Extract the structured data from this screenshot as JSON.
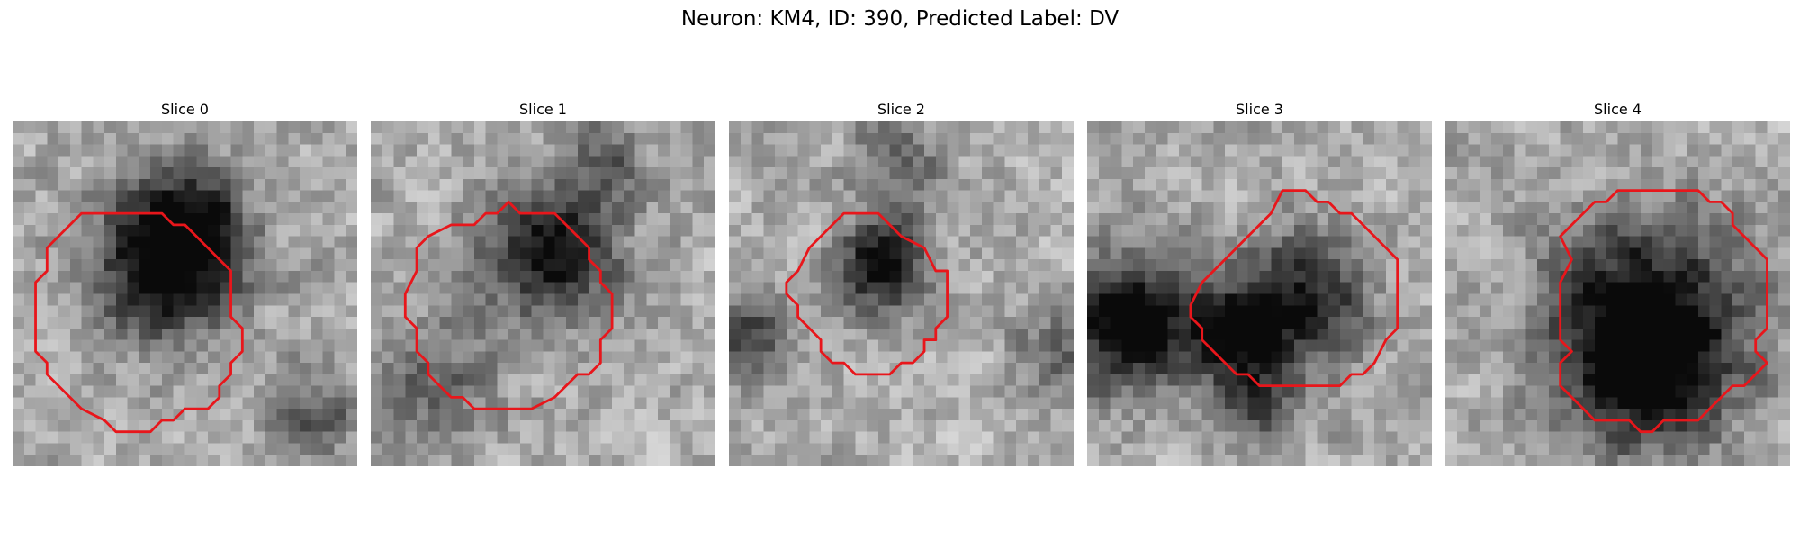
{
  "figure": {
    "title": "Neuron: KM4, ID: 390, Predicted Label: DV",
    "contour_color": "#e8161b",
    "grid_size": 30,
    "panels": [
      {
        "title": "Slice 0",
        "seed": 11,
        "blobs": [
          [
            13,
            12,
            7,
            0.85
          ],
          [
            15,
            8,
            5,
            0.5
          ],
          [
            26,
            25,
            4,
            0.4
          ]
        ],
        "contour": [
          [
            7,
            8
          ],
          [
            13,
            8
          ],
          [
            14,
            9
          ],
          [
            15,
            9
          ],
          [
            18,
            12
          ],
          [
            19,
            13
          ],
          [
            19,
            17
          ],
          [
            20,
            18
          ],
          [
            20,
            20
          ],
          [
            19,
            21
          ],
          [
            19,
            22
          ],
          [
            18,
            23
          ],
          [
            18,
            24
          ],
          [
            17,
            25
          ],
          [
            15,
            25
          ],
          [
            14,
            26
          ],
          [
            13,
            26
          ],
          [
            12,
            27
          ],
          [
            10,
            27
          ],
          [
            9,
            27
          ],
          [
            8,
            26
          ],
          [
            6,
            25
          ],
          [
            5,
            24
          ],
          [
            4,
            23
          ],
          [
            3,
            22
          ],
          [
            3,
            21
          ],
          [
            2,
            20
          ],
          [
            2,
            18
          ],
          [
            2,
            14
          ],
          [
            3,
            13
          ],
          [
            3,
            11
          ],
          [
            4,
            10
          ],
          [
            6,
            8
          ]
        ]
      },
      {
        "title": "Slice 1",
        "seed": 23,
        "blobs": [
          [
            15,
            11,
            6,
            0.8
          ],
          [
            5,
            22,
            6,
            0.35
          ],
          [
            20,
            3,
            4,
            0.35
          ]
        ],
        "contour": [
          [
            5,
            10
          ],
          [
            7,
            9
          ],
          [
            9,
            9
          ],
          [
            10,
            8
          ],
          [
            11,
            8
          ],
          [
            12,
            7
          ],
          [
            13,
            8
          ],
          [
            16,
            8
          ],
          [
            17,
            9
          ],
          [
            18,
            10
          ],
          [
            19,
            11
          ],
          [
            19,
            12
          ],
          [
            20,
            13
          ],
          [
            20,
            14
          ],
          [
            21,
            15
          ],
          [
            21,
            18
          ],
          [
            20,
            19
          ],
          [
            20,
            21
          ],
          [
            19,
            22
          ],
          [
            18,
            22
          ],
          [
            17,
            23
          ],
          [
            16,
            24
          ],
          [
            14,
            25
          ],
          [
            13,
            25
          ],
          [
            9,
            25
          ],
          [
            8,
            24
          ],
          [
            7,
            24
          ],
          [
            5,
            22
          ],
          [
            5,
            21
          ],
          [
            4,
            20
          ],
          [
            4,
            18
          ],
          [
            3,
            17
          ],
          [
            3,
            15
          ],
          [
            4,
            13
          ],
          [
            4,
            11
          ]
        ]
      },
      {
        "title": "Slice 2",
        "seed": 37,
        "blobs": [
          [
            13,
            12,
            4,
            0.9
          ],
          [
            1,
            18,
            4,
            0.55
          ],
          [
            14,
            3,
            4,
            0.4
          ],
          [
            28,
            20,
            4,
            0.35
          ]
        ],
        "contour": [
          [
            7,
            11
          ],
          [
            9,
            9
          ],
          [
            10,
            8
          ],
          [
            13,
            8
          ],
          [
            14,
            9
          ],
          [
            15,
            10
          ],
          [
            17,
            11
          ],
          [
            18,
            13
          ],
          [
            19,
            13
          ],
          [
            19,
            17
          ],
          [
            18,
            18
          ],
          [
            18,
            19
          ],
          [
            17,
            19
          ],
          [
            17,
            20
          ],
          [
            16,
            21
          ],
          [
            15,
            21
          ],
          [
            14,
            22
          ],
          [
            13,
            22
          ],
          [
            11,
            22
          ],
          [
            10,
            21
          ],
          [
            9,
            21
          ],
          [
            8,
            20
          ],
          [
            8,
            19
          ],
          [
            7,
            18
          ],
          [
            6,
            17
          ],
          [
            6,
            16
          ],
          [
            5,
            15
          ],
          [
            5,
            14
          ],
          [
            6,
            13
          ]
        ]
      },
      {
        "title": "Slice 3",
        "seed": 53,
        "blobs": [
          [
            3,
            17,
            6,
            0.95
          ],
          [
            18,
            15,
            6,
            0.75
          ],
          [
            12,
            18,
            4,
            0.7
          ],
          [
            14,
            24,
            4,
            0.5
          ]
        ],
        "contour": [
          [
            10,
            14
          ],
          [
            12,
            12
          ],
          [
            16,
            8
          ],
          [
            17,
            6
          ],
          [
            19,
            6
          ],
          [
            20,
            7
          ],
          [
            21,
            7
          ],
          [
            22,
            8
          ],
          [
            23,
            8
          ],
          [
            24,
            9
          ],
          [
            26,
            11
          ],
          [
            27,
            12
          ],
          [
            27,
            18
          ],
          [
            26,
            19
          ],
          [
            25,
            21
          ],
          [
            24,
            22
          ],
          [
            23,
            22
          ],
          [
            22,
            23
          ],
          [
            15,
            23
          ],
          [
            14,
            22
          ],
          [
            13,
            22
          ],
          [
            11,
            20
          ],
          [
            10,
            19
          ],
          [
            10,
            18
          ],
          [
            9,
            17
          ],
          [
            9,
            16
          ]
        ]
      },
      {
        "title": "Slice 4",
        "seed": 71,
        "blobs": [
          [
            17,
            17,
            9,
            0.95
          ],
          [
            17,
            22,
            6,
            0.45
          ]
        ],
        "contour": [
          [
            10,
            10
          ],
          [
            12,
            8
          ],
          [
            13,
            7
          ],
          [
            14,
            7
          ],
          [
            15,
            6
          ],
          [
            22,
            6
          ],
          [
            23,
            7
          ],
          [
            24,
            7
          ],
          [
            25,
            8
          ],
          [
            25,
            9
          ],
          [
            27,
            11
          ],
          [
            28,
            12
          ],
          [
            28,
            18
          ],
          [
            27,
            19
          ],
          [
            27,
            20
          ],
          [
            28,
            21
          ],
          [
            27,
            22
          ],
          [
            26,
            23
          ],
          [
            25,
            23
          ],
          [
            24,
            24
          ],
          [
            23,
            25
          ],
          [
            22,
            26
          ],
          [
            19,
            26
          ],
          [
            18,
            27
          ],
          [
            17,
            27
          ],
          [
            16,
            26
          ],
          [
            13,
            26
          ],
          [
            12,
            25
          ],
          [
            11,
            24
          ],
          [
            10,
            23
          ],
          [
            10,
            21
          ],
          [
            11,
            20
          ],
          [
            10,
            19
          ],
          [
            10,
            14
          ],
          [
            11,
            12
          ]
        ]
      }
    ]
  }
}
